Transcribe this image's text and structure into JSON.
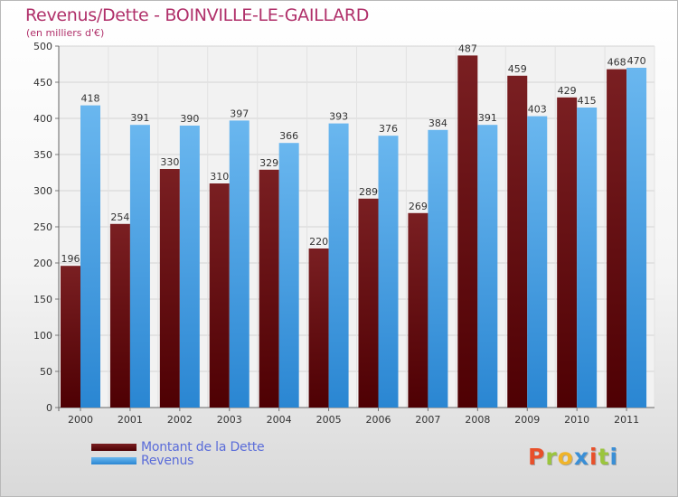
{
  "title": "Revenus/Dette - BOINVILLE-LE-GAILLARD",
  "subtitle": "(en milliers d'€)",
  "legend": {
    "debt_label": "Montant de la Dette",
    "revenue_label": "Revenus"
  },
  "logo": {
    "letters": [
      "P",
      "r",
      "o",
      "x",
      "i",
      "t",
      "i"
    ],
    "colors": [
      "#e8502a",
      "#9bc53d",
      "#f0b429",
      "#3a8fd6",
      "#e8502a",
      "#9bc53d",
      "#3a8fd6"
    ]
  },
  "colors": {
    "debt_top": "#7a1f22",
    "debt_bottom": "#4e0003",
    "revenue_top": "#6ab7ef",
    "revenue_bottom": "#2a86d2",
    "title": "#b0306a",
    "legend_text": "#5a6cd9"
  },
  "chart_data": {
    "type": "bar",
    "categories": [
      "2000",
      "2001",
      "2002",
      "2003",
      "2004",
      "2005",
      "2006",
      "2007",
      "2008",
      "2009",
      "2010",
      "2011"
    ],
    "series": [
      {
        "name": "Montant de la Dette",
        "values": [
          196,
          254,
          330,
          310,
          329,
          220,
          289,
          269,
          487,
          459,
          429,
          468
        ]
      },
      {
        "name": "Revenus",
        "values": [
          418,
          391,
          390,
          397,
          366,
          393,
          376,
          384,
          391,
          403,
          415,
          470
        ]
      }
    ],
    "title": "Revenus/Dette - BOINVILLE-LE-GAILLARD",
    "xlabel": "",
    "ylabel": "(en milliers d'€)",
    "ylim": [
      0,
      500
    ],
    "yticks": [
      0,
      50,
      100,
      150,
      200,
      250,
      300,
      350,
      400,
      450,
      500
    ],
    "grid": true,
    "legend_position": "bottom-left"
  }
}
